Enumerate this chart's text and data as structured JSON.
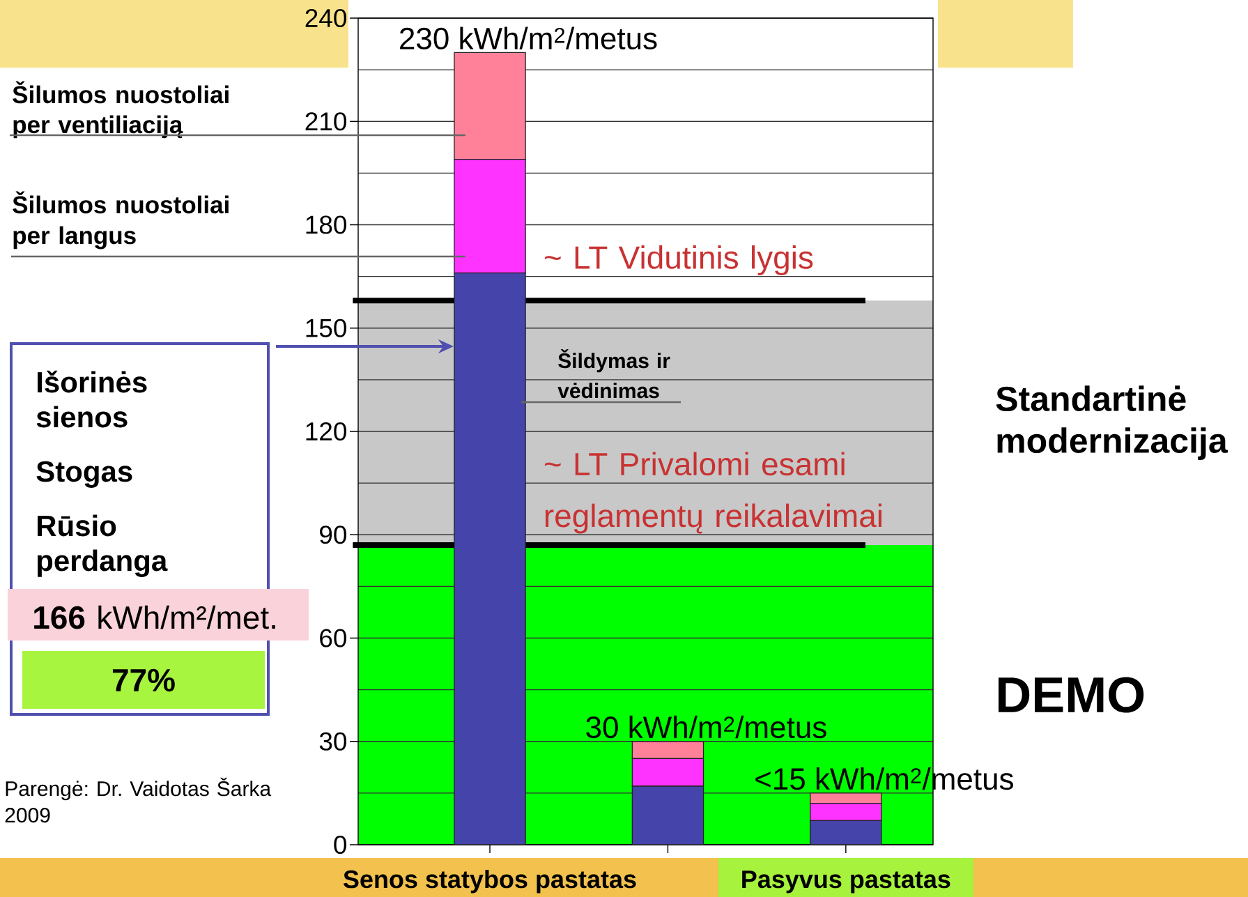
{
  "chart_data": {
    "type": "bar",
    "stacked": true,
    "categories": [
      "Senos statybos pastatas",
      null,
      "Pasyvus pastatas"
    ],
    "series": [
      {
        "name": "Šildymas ir vėdinimas",
        "color": "#4444aa",
        "values": [
          166,
          17,
          7
        ]
      },
      {
        "name": "Šilumos nuostoliai per langus",
        "color": "#ff33ff",
        "values": [
          33,
          8,
          5
        ]
      },
      {
        "name": "Šilumos nuostoliai per ventiliaciją",
        "color": "#ff8099",
        "values": [
          31,
          5,
          3
        ]
      }
    ],
    "totals": [
      "230 kWh/m$^{2}$/metus",
      "30 kWh/m$^{2}$/metus",
      "<15 kWh/m$^{2}$/metus"
    ],
    "ylim": [
      0,
      240
    ],
    "yticks": [
      0,
      30,
      60,
      90,
      120,
      150,
      180,
      210,
      240
    ],
    "grid": "y",
    "ref_lines": [
      {
        "axis": "y",
        "value": 158,
        "label": "~ LT Vidutinis lygis",
        "color": "#000000"
      },
      {
        "axis": "y",
        "value": 87,
        "label": "~ LT Privalomi esami reglamentų reikalavimai",
        "color": "#000000"
      }
    ],
    "bands": [
      {
        "axis": "y",
        "from": 87,
        "to": 158,
        "label": "Standartinė modernizacija",
        "color": "#c8c8c8"
      },
      {
        "axis": "y",
        "from": 0,
        "to": 87,
        "label": "DEMO",
        "color": "#00ff00"
      }
    ],
    "annotations": [
      "Išorinės sienos",
      "Stogas",
      "Rūsio perdanga",
      "**166** kWh/m²/met.",
      "77%",
      "Parengė: Dr. Vaidotas Šarka",
      "2009"
    ]
  }
}
